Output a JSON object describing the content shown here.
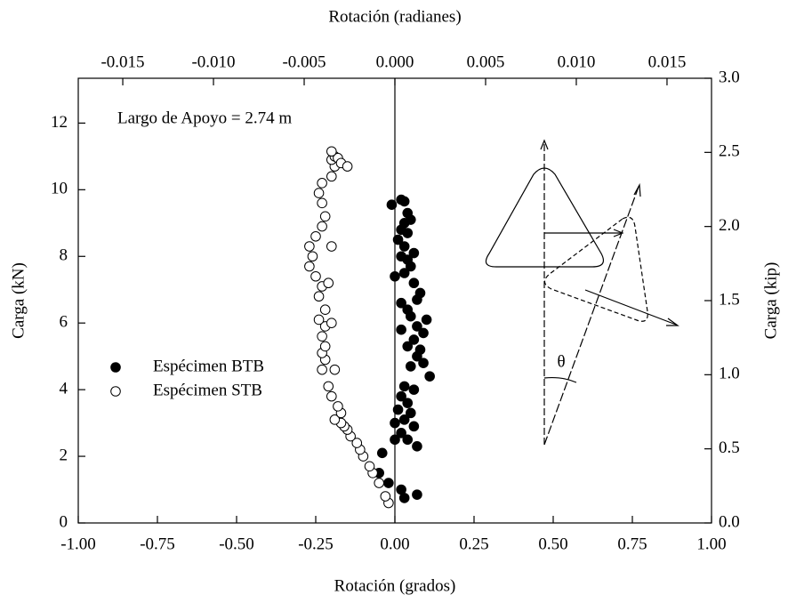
{
  "chart_data": {
    "type": "scatter",
    "xlabel": "Rotación (grados)",
    "x2label": "Rotación (radianes)",
    "ylabel": "Carga (kN)",
    "y2label": "Carga (kip)",
    "annotation": "Largo de Apoyo = 2.74 m",
    "diagram_label": "θ",
    "xlim": [
      -1,
      1
    ],
    "xticks": [
      {
        "value": -1,
        "label": "-1.00"
      },
      {
        "value": -0.75,
        "label": "-0.75"
      },
      {
        "value": -0.5,
        "label": "-0.50"
      },
      {
        "value": -0.25,
        "label": "-0.25"
      },
      {
        "value": 0,
        "label": "0.00"
      },
      {
        "value": 0.25,
        "label": "0.25"
      },
      {
        "value": 0.5,
        "label": "0.50"
      },
      {
        "value": 0.75,
        "label": "0.75"
      },
      {
        "value": 1,
        "label": "1.00"
      }
    ],
    "x2lim": [
      -0.017453,
      0.017453
    ],
    "x2ticks": [
      {
        "value": -0.015,
        "label": "-0.015"
      },
      {
        "value": -0.01,
        "label": "-0.010"
      },
      {
        "value": -0.005,
        "label": "-0.005"
      },
      {
        "value": 0,
        "label": "0.000"
      },
      {
        "value": 0.005,
        "label": "0.005"
      },
      {
        "value": 0.01,
        "label": "0.010"
      },
      {
        "value": 0.015,
        "label": "0.015"
      }
    ],
    "ylim": [
      0,
      13.345
    ],
    "yticks": [
      0,
      2,
      4,
      6,
      8,
      10,
      12
    ],
    "y2lim": [
      0,
      3
    ],
    "y2ticks": [
      {
        "value": 0,
        "label": "0.0"
      },
      {
        "value": 0.5,
        "label": "0.5"
      },
      {
        "value": 1,
        "label": "1.0"
      },
      {
        "value": 1.5,
        "label": "1.5"
      },
      {
        "value": 2,
        "label": "2.0"
      },
      {
        "value": 2.5,
        "label": "2.5"
      },
      {
        "value": 3,
        "label": "3.0"
      }
    ],
    "zero_line": true,
    "series": [
      {
        "name": "Espécimen BTB",
        "color": "#000000",
        "filled": true,
        "x": [
          0.02,
          0.03,
          -0.01,
          0.04,
          0.05,
          0.03,
          0.02,
          0.04,
          0.01,
          0.03,
          0.06,
          0.02,
          0.04,
          0.05,
          0.03,
          0.0,
          0.06,
          0.08,
          0.07,
          0.02,
          0.04,
          0.1,
          0.05,
          0.07,
          0.02,
          0.09,
          0.06,
          0.04,
          0.08,
          0.07,
          0.09,
          0.05,
          0.11,
          0.03,
          0.06,
          0.02,
          0.04,
          0.01,
          0.05,
          0.03,
          0.0,
          0.06,
          0.02,
          0.04,
          0.0,
          0.07,
          -0.04,
          -0.05,
          -0.02,
          0.02,
          0.07,
          0.03
        ],
        "values": [
          9.7,
          9.65,
          9.55,
          9.3,
          9.1,
          9.0,
          8.8,
          8.7,
          8.5,
          8.3,
          8.1,
          8.0,
          7.9,
          7.7,
          7.5,
          7.4,
          7.2,
          6.9,
          6.7,
          6.6,
          6.4,
          6.1,
          6.2,
          5.9,
          5.8,
          5.7,
          5.5,
          5.3,
          5.2,
          5.0,
          4.8,
          4.7,
          4.4,
          4.1,
          4.0,
          3.8,
          3.6,
          3.4,
          3.3,
          3.1,
          3.0,
          2.9,
          2.7,
          2.5,
          2.5,
          2.3,
          2.1,
          1.5,
          1.2,
          1.0,
          0.85,
          0.75
        ]
      },
      {
        "name": "Espécimen STB",
        "color": "#000000",
        "filled": false,
        "x": [
          -0.02,
          -0.03,
          -0.05,
          -0.07,
          -0.08,
          -0.1,
          -0.11,
          -0.12,
          -0.14,
          -0.15,
          -0.16,
          -0.17,
          -0.19,
          -0.17,
          -0.18,
          -0.2,
          -0.21,
          -0.23,
          -0.22,
          -0.23,
          -0.22,
          -0.23,
          -0.22,
          -0.24,
          -0.22,
          -0.24,
          -0.23,
          -0.25,
          -0.27,
          -0.26,
          -0.27,
          -0.25,
          -0.23,
          -0.22,
          -0.23,
          -0.24,
          -0.23,
          -0.2,
          -0.19,
          -0.2,
          -0.19,
          -0.18,
          -0.17,
          -0.15,
          -0.2,
          -0.21,
          -0.2,
          -0.19,
          -0.2
        ],
        "values": [
          0.6,
          0.8,
          1.2,
          1.5,
          1.7,
          2.0,
          2.2,
          2.4,
          2.6,
          2.8,
          2.9,
          3.0,
          3.1,
          3.3,
          3.5,
          3.8,
          4.1,
          4.6,
          4.9,
          5.1,
          5.3,
          5.6,
          5.9,
          6.1,
          6.4,
          6.8,
          7.1,
          7.4,
          7.7,
          8.0,
          8.3,
          8.6,
          8.9,
          9.2,
          9.6,
          9.9,
          10.2,
          10.4,
          10.7,
          10.9,
          11.0,
          10.95,
          10.8,
          10.7,
          11.15,
          7.2,
          6.0,
          4.6,
          8.3
        ]
      }
    ]
  }
}
